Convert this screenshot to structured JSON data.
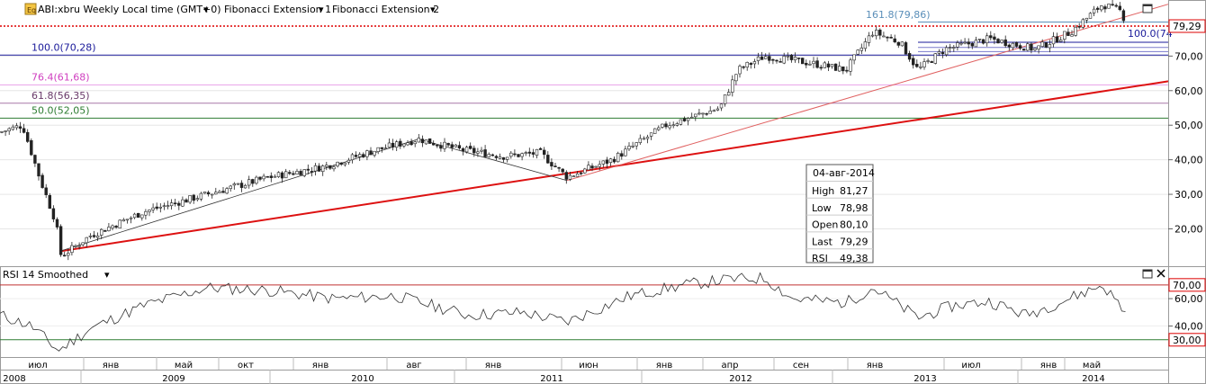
{
  "header": {
    "symbol_label": "ABI:xbru Weekly Local time (GMT+0)",
    "indicator_1": "Fibonacci Extension 1",
    "indicator_2": "Fibonacci Extension 2",
    "last_price_tag": "79,29"
  },
  "info_box": {
    "date": "04-авг-2014",
    "rows": [
      {
        "label": "High",
        "value": "81,27"
      },
      {
        "label": "Low",
        "value": "78,98"
      },
      {
        "label": "Open",
        "value": "80,10"
      },
      {
        "label": "Last",
        "value": "79,29"
      },
      {
        "label": "RSI",
        "value": "49,38"
      }
    ]
  },
  "rsi_panel": {
    "title": "RSI 14 Smoothed",
    "upper_tag": "70,00",
    "lower_tag": "30,00"
  },
  "colors": {
    "upper_fib": "#1a1a9a",
    "pink_fib": "#e8a0e8",
    "purple_fib": "#a878a8",
    "green_fib": "#2e7d32",
    "trend_red": "#dd1111",
    "last_price": "#dd0000",
    "candle": "#222222"
  },
  "chart_data": [
    {
      "type": "candlestick",
      "timeframe": "Weekly",
      "y_ticks": [
        "20,00",
        "30,00",
        "40,00",
        "50,00",
        "60,00",
        "70,00"
      ],
      "ylim": [
        10,
        87
      ],
      "fib_levels": [
        {
          "label": "161.8(79,86)",
          "value": 79.86,
          "color": "#5b8fb9"
        },
        {
          "label": "100.0(74",
          "value": 74.0,
          "color": "#1a1a9a"
        },
        {
          "label": "100.0(70,28)",
          "value": 70.28,
          "color": "#1a1a9a"
        },
        {
          "label": "76.4(61,68)",
          "value": 61.68,
          "color": "#d040c0"
        },
        {
          "label": "61.8(56,35)",
          "value": 56.35,
          "color": "#6a3a6a"
        },
        {
          "label": "50.0(52,05)",
          "value": 52.05,
          "color": "#2e7d32"
        }
      ],
      "last_value": 79.29,
      "x_month_ticks": [
        "июл",
        "янв",
        "май",
        "окт",
        "янв",
        "авг",
        "янв",
        "июн",
        "янв",
        "апр",
        "сен",
        "янв",
        "июл",
        "янв",
        "май"
      ],
      "x_year_ticks": [
        "2008",
        "2009",
        "2010",
        "2011",
        "2012",
        "2013",
        "2014"
      ],
      "key_points": [
        {
          "x": 0,
          "y": 48
        },
        {
          "x": 25,
          "y": 50
        },
        {
          "x": 45,
          "y": 34
        },
        {
          "x": 62,
          "y": 22
        },
        {
          "x": 68,
          "y": 12
        },
        {
          "x": 100,
          "y": 18
        },
        {
          "x": 160,
          "y": 25
        },
        {
          "x": 230,
          "y": 30
        },
        {
          "x": 300,
          "y": 35
        },
        {
          "x": 360,
          "y": 38
        },
        {
          "x": 420,
          "y": 43
        },
        {
          "x": 465,
          "y": 46
        },
        {
          "x": 510,
          "y": 43
        },
        {
          "x": 560,
          "y": 41
        },
        {
          "x": 600,
          "y": 42
        },
        {
          "x": 630,
          "y": 35
        },
        {
          "x": 680,
          "y": 40
        },
        {
          "x": 740,
          "y": 50
        },
        {
          "x": 800,
          "y": 55
        },
        {
          "x": 820,
          "y": 66
        },
        {
          "x": 850,
          "y": 70
        },
        {
          "x": 900,
          "y": 68
        },
        {
          "x": 940,
          "y": 66
        },
        {
          "x": 970,
          "y": 77
        },
        {
          "x": 1000,
          "y": 74
        },
        {
          "x": 1020,
          "y": 66
        },
        {
          "x": 1050,
          "y": 72
        },
        {
          "x": 1100,
          "y": 75
        },
        {
          "x": 1150,
          "y": 72
        },
        {
          "x": 1190,
          "y": 77
        },
        {
          "x": 1225,
          "y": 85
        },
        {
          "x": 1245,
          "y": 83
        },
        {
          "x": 1252,
          "y": 79.29
        }
      ]
    },
    {
      "type": "line",
      "name": "RSI 14 Smoothed",
      "y_ticks": [
        "40,00",
        "60,00"
      ],
      "ylim": [
        20,
        80
      ],
      "levels": [
        70,
        30
      ],
      "last_value": 49.38,
      "key_points": [
        {
          "x": 0,
          "y": 48
        },
        {
          "x": 35,
          "y": 40
        },
        {
          "x": 65,
          "y": 22
        },
        {
          "x": 100,
          "y": 38
        },
        {
          "x": 160,
          "y": 55
        },
        {
          "x": 230,
          "y": 68
        },
        {
          "x": 300,
          "y": 66
        },
        {
          "x": 370,
          "y": 60
        },
        {
          "x": 440,
          "y": 62
        },
        {
          "x": 520,
          "y": 48
        },
        {
          "x": 580,
          "y": 50
        },
        {
          "x": 630,
          "y": 43
        },
        {
          "x": 700,
          "y": 62
        },
        {
          "x": 760,
          "y": 70
        },
        {
          "x": 810,
          "y": 74
        },
        {
          "x": 850,
          "y": 75
        },
        {
          "x": 880,
          "y": 60
        },
        {
          "x": 940,
          "y": 57
        },
        {
          "x": 970,
          "y": 68
        },
        {
          "x": 1020,
          "y": 46
        },
        {
          "x": 1060,
          "y": 55
        },
        {
          "x": 1100,
          "y": 58
        },
        {
          "x": 1140,
          "y": 48
        },
        {
          "x": 1180,
          "y": 58
        },
        {
          "x": 1225,
          "y": 70
        },
        {
          "x": 1252,
          "y": 49.38
        }
      ]
    }
  ]
}
